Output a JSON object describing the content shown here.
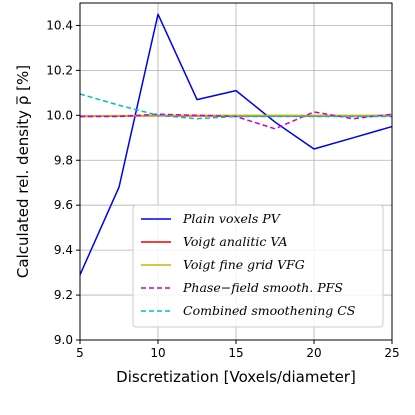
{
  "chart_data": {
    "type": "line",
    "title": "",
    "xlabel": "Discretization [Voxels/diameter]",
    "ylabel": "Calculated rel. density ρ̅ [%]",
    "xlim": [
      5,
      25
    ],
    "ylim": [
      9.0,
      10.5
    ],
    "xticks": [
      "5",
      "10",
      "15",
      "20",
      "25"
    ],
    "yticks": [
      "9.0",
      "9.2",
      "9.4",
      "9.6",
      "9.8",
      "10.0",
      "10.2",
      "10.4"
    ],
    "grid": true,
    "legend_position": "lower-right",
    "series": [
      {
        "name": "Plain voxels PV",
        "color": "#0000ee",
        "style": "solid",
        "x": [
          5,
          7.5,
          10,
          12.5,
          15,
          17.5,
          20,
          22.5,
          25
        ],
        "y": [
          9.29,
          9.68,
          10.45,
          10.07,
          10.11,
          9.97,
          9.85,
          9.9,
          9.95
        ]
      },
      {
        "name": "Voigt analitic VA",
        "color": "#ee0000",
        "style": "solid",
        "x": [
          5,
          10,
          15,
          20,
          25
        ],
        "y": [
          9.995,
          9.998,
          9.997,
          9.997,
          9.998
        ]
      },
      {
        "name": "Voigt fine grid VFG",
        "color": "#c8b400",
        "style": "solid",
        "x": [
          5,
          10,
          15,
          20,
          25
        ],
        "y": [
          9.995,
          10.0,
          10.0,
          9.999,
          10.0
        ]
      },
      {
        "name": "Phase−field smooth. PFS",
        "color": "#cc00cc",
        "style": "dashed",
        "x": [
          5,
          7.5,
          10,
          12.5,
          15,
          17.5,
          20,
          22.5,
          25
        ],
        "y": [
          9.995,
          9.995,
          10.005,
          10.0,
          9.995,
          9.94,
          10.015,
          9.985,
          10.005
        ]
      },
      {
        "name": "Combined smoothening CS",
        "color": "#00bfbf",
        "style": "dashed",
        "x": [
          5,
          7.5,
          10,
          12.5,
          15,
          17.5,
          20,
          22.5,
          25
        ],
        "y": [
          10.095,
          10.045,
          10.0,
          9.985,
          9.995,
          9.995,
          9.995,
          9.995,
          9.995
        ]
      }
    ]
  }
}
